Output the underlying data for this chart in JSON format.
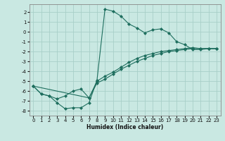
{
  "xlabel": "Humidex (Indice chaleur)",
  "xlim": [
    -0.5,
    23.5
  ],
  "ylim": [
    -8.5,
    2.8
  ],
  "xticks": [
    0,
    1,
    2,
    3,
    4,
    5,
    6,
    7,
    8,
    9,
    10,
    11,
    12,
    13,
    14,
    15,
    16,
    17,
    18,
    19,
    20,
    21,
    22,
    23
  ],
  "yticks": [
    -8,
    -7,
    -6,
    -5,
    -4,
    -3,
    -2,
    -1,
    0,
    1,
    2
  ],
  "bg_color": "#c9e8e2",
  "grid_color": "#a8cfc8",
  "line_color": "#1e6e5e",
  "series1_x": [
    0,
    1,
    2,
    3,
    4,
    5,
    6,
    7,
    8,
    9,
    10,
    11,
    12,
    13,
    14,
    15,
    16,
    17,
    18,
    19,
    20,
    21,
    22,
    23
  ],
  "series1_y": [
    -5.5,
    -6.3,
    -6.5,
    -7.2,
    -7.8,
    -7.7,
    -7.7,
    -7.2,
    -4.9,
    2.3,
    2.1,
    1.6,
    0.8,
    0.4,
    -0.1,
    0.2,
    0.3,
    -0.1,
    -1.0,
    -1.3,
    -1.8,
    -1.8,
    -1.7,
    -1.7
  ],
  "series2_x": [
    0,
    1,
    2,
    3,
    4,
    5,
    6,
    7,
    8,
    9,
    10,
    11,
    12,
    13,
    14,
    15,
    16,
    17,
    18,
    19,
    20,
    21,
    22,
    23
  ],
  "series2_y": [
    -5.5,
    -6.3,
    -6.5,
    -6.8,
    -6.5,
    -6.0,
    -5.8,
    -6.7,
    -5.0,
    -4.5,
    -4.1,
    -3.6,
    -3.1,
    -2.7,
    -2.4,
    -2.2,
    -2.0,
    -1.9,
    -1.8,
    -1.7,
    -1.6,
    -1.7,
    -1.7,
    -1.7
  ],
  "series3_x": [
    0,
    7,
    8,
    9,
    10,
    11,
    12,
    13,
    14,
    15,
    16,
    17,
    18,
    19,
    20,
    21,
    22,
    23
  ],
  "series3_y": [
    -5.5,
    -6.7,
    -5.2,
    -4.8,
    -4.3,
    -3.8,
    -3.4,
    -3.0,
    -2.7,
    -2.4,
    -2.2,
    -2.0,
    -1.9,
    -1.8,
    -1.7,
    -1.7,
    -1.7,
    -1.7
  ]
}
